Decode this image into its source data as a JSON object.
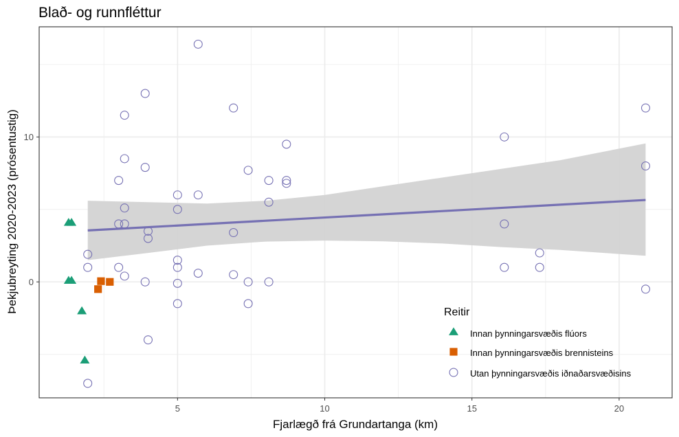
{
  "chart_data": {
    "type": "scatter",
    "title": "Blað- og runnfléttur",
    "xlabel": "Fjarlægð frá Grundartanga (km)",
    "ylabel": "Þekjubreyting 2020-2023 (prósentustig)",
    "xlim": [
      0.3,
      21.8
    ],
    "ylim": [
      -8.0,
      17.6
    ],
    "x_ticks": [
      5,
      10,
      15,
      20
    ],
    "y_ticks": [
      0,
      10
    ],
    "x_tick_labels": [
      "5",
      "10",
      "15",
      "20"
    ],
    "y_tick_labels": [
      "0",
      "10"
    ],
    "grid": true,
    "legend": {
      "title": "Reitir",
      "position": "inside-bottom-right"
    },
    "series": [
      {
        "name": "Innan þynningarsvæðis flúors",
        "marker": "triangle",
        "color": "#1b9e77",
        "x": [
          1.3,
          1.4,
          1.3,
          1.4,
          1.75,
          1.85
        ],
        "y": [
          4.1,
          4.1,
          0.1,
          0.1,
          -2.0,
          -5.4
        ]
      },
      {
        "name": "Innan þynningarsvæðis brennisteins",
        "marker": "square",
        "color": "#d95f02",
        "x": [
          2.3,
          2.4,
          2.7
        ],
        "y": [
          -0.5,
          0.05,
          0.0
        ]
      },
      {
        "name": "Utan þynningarsvæðis iðnaðarsvæðisins",
        "marker": "open-circle",
        "color": "#7570b3",
        "x": [
          1.95,
          1.95,
          1.95,
          3.0,
          3.0,
          3.0,
          3.2,
          3.2,
          3.2,
          3.2,
          3.2,
          3.9,
          3.9,
          3.9,
          4.0,
          4.0,
          4.0,
          5.0,
          5.0,
          5.0,
          5.0,
          5.0,
          5.0,
          5.7,
          5.7,
          5.7,
          6.9,
          6.9,
          6.9,
          7.4,
          7.4,
          7.4,
          8.1,
          8.1,
          8.1,
          8.7,
          8.7,
          8.7,
          16.1,
          16.1,
          16.1,
          17.3,
          17.3,
          20.9,
          20.9,
          20.9
        ],
        "y": [
          1.9,
          1.0,
          -7.0,
          7.0,
          4.0,
          1.0,
          11.5,
          8.5,
          5.1,
          4.0,
          0.4,
          13.0,
          7.9,
          0.0,
          3.5,
          3.0,
          -4.0,
          6.0,
          5.0,
          1.5,
          1.0,
          -0.1,
          -1.5,
          16.4,
          6.0,
          0.6,
          12.0,
          3.4,
          0.5,
          7.7,
          0.0,
          -1.5,
          7.0,
          5.5,
          0.0,
          9.5,
          7.0,
          6.8,
          10.0,
          4.0,
          1.0,
          2.0,
          1.0,
          12.0,
          8.0,
          -0.5
        ]
      }
    ],
    "trend": {
      "type": "linear",
      "color": "#7570b3",
      "band_color": "#d3d3d3",
      "x": [
        1.95,
        20.9
      ],
      "y": [
        3.55,
        5.65
      ],
      "ci_x": [
        1.95,
        4.0,
        6.0,
        8.0,
        10.0,
        12.0,
        14.0,
        16.0,
        18.0,
        20.9
      ],
      "ci_lower": [
        1.5,
        2.0,
        2.5,
        2.78,
        2.85,
        2.8,
        2.65,
        2.4,
        2.2,
        1.8
      ],
      "ci_upper": [
        5.6,
        5.5,
        5.4,
        5.6,
        6.0,
        6.6,
        7.2,
        7.8,
        8.4,
        9.55
      ]
    }
  }
}
